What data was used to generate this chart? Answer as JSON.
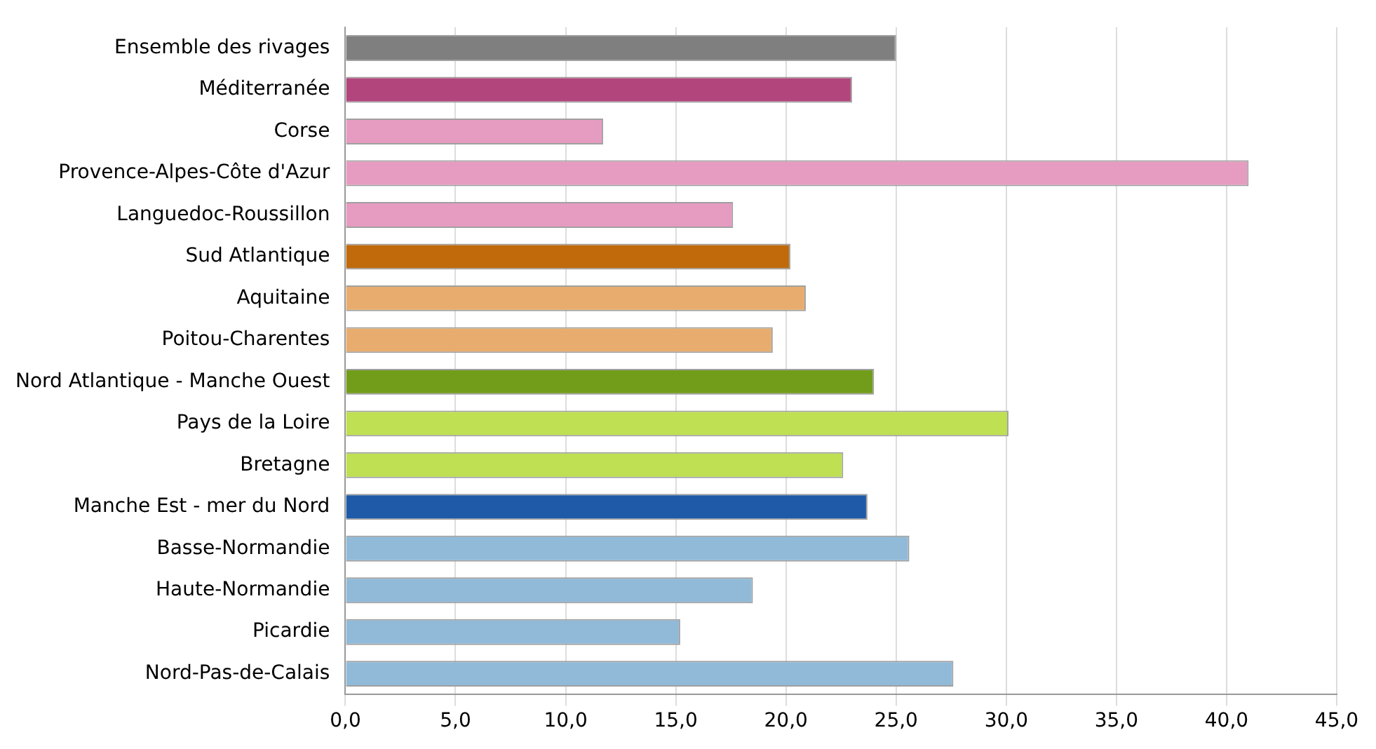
{
  "chart_data": {
    "type": "bar",
    "orientation": "horizontal",
    "categories": [
      "Ensemble des rivages",
      "Méditerranée",
      "Corse",
      "Provence-Alpes-Côte d'Azur",
      "Languedoc-Roussillon",
      "Sud Atlantique",
      "Aquitaine",
      "Poitou-Charentes",
      "Nord Atlantique - Manche Ouest",
      "Pays de la Loire",
      "Bretagne",
      "Manche Est - mer du Nord",
      "Basse-Normandie",
      "Haute-Normandie",
      "Picardie",
      "Nord-Pas-de-Calais"
    ],
    "values": [
      25.0,
      23.0,
      11.7,
      41.0,
      17.6,
      20.2,
      20.9,
      19.4,
      24.0,
      30.1,
      22.6,
      23.7,
      25.6,
      18.5,
      15.2,
      27.6
    ],
    "colors": [
      "#7f7f7f",
      "#b2457c",
      "#e69bc1",
      "#e69bc1",
      "#e69bc1",
      "#c06a0c",
      "#e8ad6e",
      "#e8ad6e",
      "#729d1b",
      "#bee052",
      "#bee052",
      "#1e5aa8",
      "#90bad8",
      "#90bad8",
      "#90bad8",
      "#90bad8"
    ],
    "xlim": [
      0,
      45
    ],
    "xticks": [
      {
        "value": 0,
        "label": "0,0"
      },
      {
        "value": 5,
        "label": "5,0"
      },
      {
        "value": 10,
        "label": "10,0"
      },
      {
        "value": 15,
        "label": "15,0"
      },
      {
        "value": 20,
        "label": "20,0"
      },
      {
        "value": 25,
        "label": "25,0"
      },
      {
        "value": 30,
        "label": "30,0"
      },
      {
        "value": 35,
        "label": "35,0"
      },
      {
        "value": 40,
        "label": "40,0"
      },
      {
        "value": 45,
        "label": "45,0"
      }
    ],
    "grid": "x",
    "legend": false
  }
}
